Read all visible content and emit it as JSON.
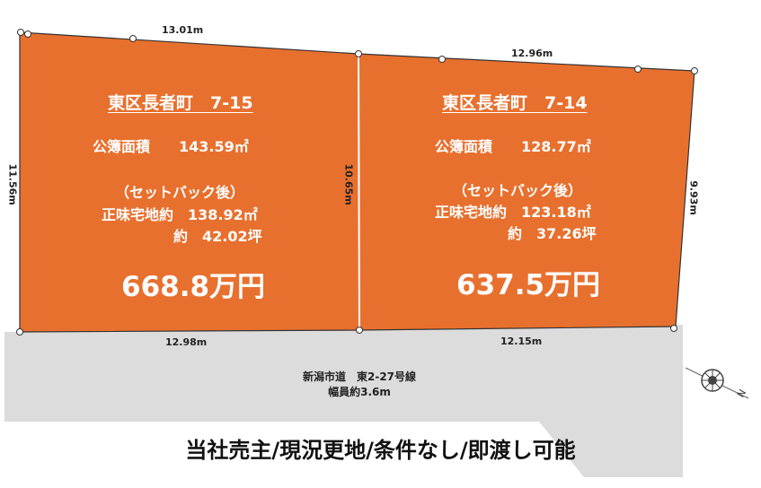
{
  "lots": [
    {
      "title": "東区長者町　7-15",
      "area_line": "公簿面積　　143.59㎡",
      "setback_line": "（セットバック後）",
      "effective_line": "正味宅地約　138.92㎡",
      "tsubo_line": "約　42.02坪",
      "price": "668.8万円"
    },
    {
      "title": "東区長者町　7-14",
      "area_line": "公簿面積　　128.77㎡",
      "setback_line": "（セットバック後）",
      "effective_line": "正味宅地約　123.18㎡",
      "tsubo_line": "約　37.26坪",
      "price": "637.5万円"
    }
  ],
  "dimensions": {
    "top_left": "13.01m",
    "top_right": "12.96m",
    "left_side": "11.56m",
    "middle": "10.65m",
    "right_side": "9.93m",
    "bottom_left": "12.98m",
    "bottom_right": "12.15m"
  },
  "road": {
    "name": "新潟市道　東2-27号線",
    "width": "幅員約3.6m"
  },
  "compass": {
    "label": "N"
  },
  "caption": "当社売主/現況更地/条件なし/即渡し可能",
  "colors": {
    "lot_fill": "#E8702E",
    "road_fill": "#DCDCDC",
    "line": "#333333"
  }
}
